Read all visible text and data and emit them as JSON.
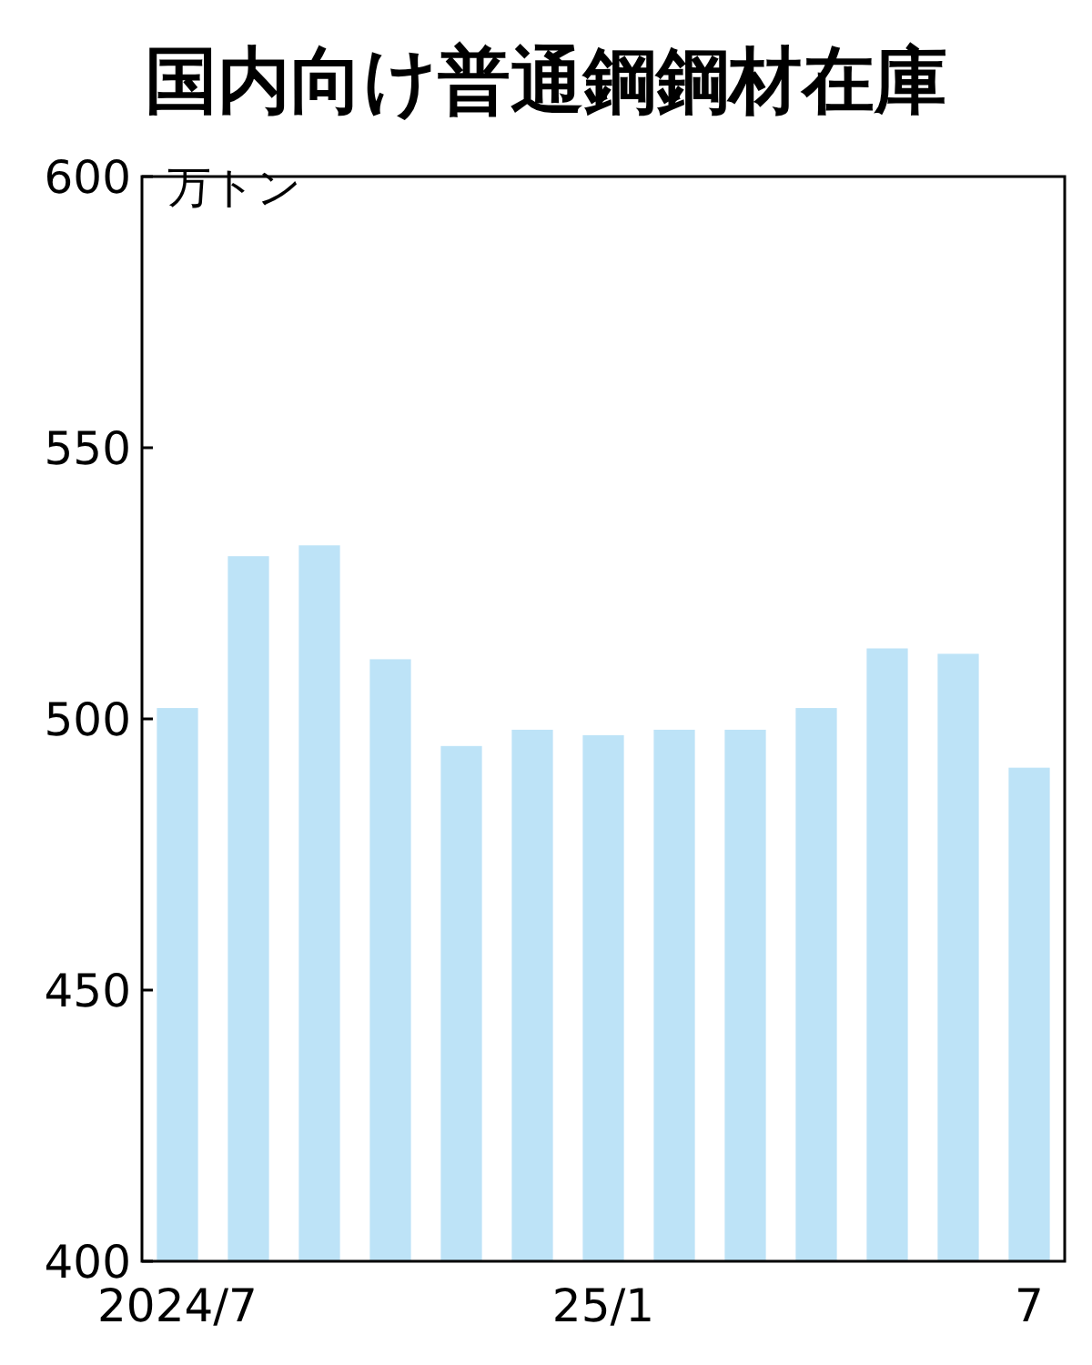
{
  "chart_data": {
    "type": "bar",
    "title": "国内向け普通鋼鋼材在庫",
    "ylabel": "万トン",
    "categories": [
      "2024/7",
      null,
      null,
      null,
      null,
      null,
      "25/1",
      null,
      null,
      null,
      null,
      null,
      "7"
    ],
    "values": [
      502,
      530,
      532,
      511,
      495,
      498,
      497,
      498,
      498,
      502,
      513,
      512,
      491
    ],
    "color": "#bde3f7",
    "ylim": [
      400,
      600
    ],
    "yticks": [
      400,
      450,
      500,
      550,
      600
    ]
  }
}
